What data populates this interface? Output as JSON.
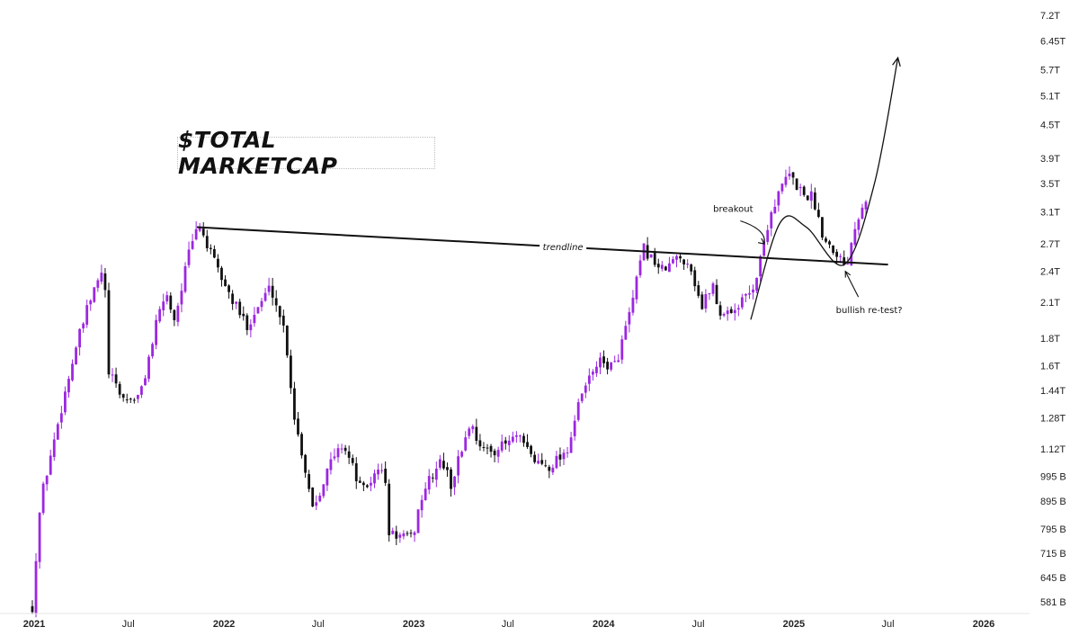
{
  "chart_data": {
    "type": "candlestick",
    "title": "$TOTAL MARKETCAP",
    "scale": "log",
    "bull_color": "#9c27e0",
    "bear_color": "#111111",
    "y_ticks": [
      "7.2T",
      "6.45T",
      "5.7T",
      "5.1T",
      "4.5T",
      "3.9T",
      "3.5T",
      "3.1T",
      "2.7T",
      "2.4T",
      "2.1T",
      "1.8T",
      "1.6T",
      "1.44T",
      "1.28T",
      "1.12T",
      "995 B",
      "895 B",
      "795 B",
      "715 B",
      "645 B",
      "581 B"
    ],
    "y_tick_values": [
      7.2,
      6.45,
      5.7,
      5.1,
      4.5,
      3.9,
      3.5,
      3.1,
      2.7,
      2.4,
      2.1,
      1.8,
      1.6,
      1.44,
      1.28,
      1.12,
      0.995,
      0.895,
      0.795,
      0.715,
      0.645,
      0.581
    ],
    "x_ticks": [
      {
        "label": "2021",
        "date": "2021-01-01",
        "year": true
      },
      {
        "label": "Jul",
        "date": "2021-07-01",
        "year": false
      },
      {
        "label": "2022",
        "date": "2022-01-01",
        "year": true
      },
      {
        "label": "Jul",
        "date": "2022-07-01",
        "year": false
      },
      {
        "label": "2023",
        "date": "2023-01-01",
        "year": true
      },
      {
        "label": "Jul",
        "date": "2023-07-01",
        "year": false
      },
      {
        "label": "2024",
        "date": "2024-01-01",
        "year": true
      },
      {
        "label": "Jul",
        "date": "2024-07-01",
        "year": false
      },
      {
        "label": "2025",
        "date": "2025-01-01",
        "year": true
      },
      {
        "label": "Jul",
        "date": "2025-07-01",
        "year": false
      },
      {
        "label": "2026",
        "date": "2026-01-01",
        "year": true
      }
    ],
    "price_path": [
      [
        "2020-12-25",
        0.57
      ],
      [
        "2021-01-10",
        0.9
      ],
      [
        "2021-02-20",
        1.35
      ],
      [
        "2021-03-20",
        1.75
      ],
      [
        "2021-04-14",
        2.1
      ],
      [
        "2021-05-12",
        2.45
      ],
      [
        "2021-05-20",
        1.55
      ],
      [
        "2021-06-20",
        1.38
      ],
      [
        "2021-07-20",
        1.4
      ],
      [
        "2021-08-20",
        1.9
      ],
      [
        "2021-09-07",
        2.2
      ],
      [
        "2021-09-25",
        1.95
      ],
      [
        "2021-10-20",
        2.55
      ],
      [
        "2021-11-10",
        2.95
      ],
      [
        "2021-12-05",
        2.55
      ],
      [
        "2022-01-10",
        2.15
      ],
      [
        "2022-02-10",
        1.9
      ],
      [
        "2022-03-28",
        2.25
      ],
      [
        "2022-04-25",
        1.85
      ],
      [
        "2022-05-12",
        1.3
      ],
      [
        "2022-06-18",
        0.87
      ],
      [
        "2022-07-20",
        1.05
      ],
      [
        "2022-08-15",
        1.15
      ],
      [
        "2022-09-20",
        0.93
      ],
      [
        "2022-11-01",
        1.05
      ],
      [
        "2022-11-10",
        0.78
      ],
      [
        "2022-12-25",
        0.76
      ],
      [
        "2023-01-15",
        0.93
      ],
      [
        "2023-02-20",
        1.07
      ],
      [
        "2023-03-10",
        0.96
      ],
      [
        "2023-04-15",
        1.25
      ],
      [
        "2023-05-15",
        1.1
      ],
      [
        "2023-06-15",
        1.13
      ],
      [
        "2023-07-15",
        1.18
      ],
      [
        "2023-08-20",
        1.06
      ],
      [
        "2023-09-15",
        1.04
      ],
      [
        "2023-10-20",
        1.12
      ],
      [
        "2023-11-15",
        1.4
      ],
      [
        "2023-12-15",
        1.62
      ],
      [
        "2024-01-20",
        1.6
      ],
      [
        "2024-02-20",
        2.05
      ],
      [
        "2024-03-14",
        2.65
      ],
      [
        "2024-04-20",
        2.4
      ],
      [
        "2024-05-20",
        2.55
      ],
      [
        "2024-06-10",
        2.5
      ],
      [
        "2024-07-05",
        2.05
      ],
      [
        "2024-07-25",
        2.3
      ],
      [
        "2024-08-05",
        2.0
      ],
      [
        "2024-09-10",
        2.05
      ],
      [
        "2024-10-15",
        2.28
      ],
      [
        "2024-11-12",
        3.05
      ],
      [
        "2024-12-17",
        3.65
      ],
      [
        "2025-01-15",
        3.35
      ],
      [
        "2025-02-03",
        3.3
      ],
      [
        "2025-02-25",
        2.75
      ],
      [
        "2025-03-15",
        2.65
      ],
      [
        "2025-04-08",
        2.45
      ],
      [
        "2025-04-22",
        2.85
      ],
      [
        "2025-05-10",
        3.25
      ],
      [
        "2025-05-20",
        3.3
      ]
    ],
    "annotations": {
      "trendline_label": "trendline",
      "breakout_label": "breakout",
      "retest_label": "bullish re-test?"
    },
    "trendline": {
      "start": [
        "2021-11-10",
        2.9
      ],
      "end": [
        "2025-07-01",
        2.47
      ]
    },
    "breakout_arrow": {
      "from": [
        "2024-09-20",
        2.98
      ],
      "to": [
        "2024-11-05",
        2.7
      ]
    },
    "retest_arrow": {
      "from": [
        "2025-05-05",
        2.15
      ],
      "to": [
        "2025-04-10",
        2.4
      ]
    },
    "projection_curve": [
      [
        "2024-10-10",
        1.95
      ],
      [
        "2024-12-05",
        2.95
      ],
      [
        "2025-01-25",
        2.9
      ],
      [
        "2025-04-08",
        2.47
      ],
      [
        "2025-06-05",
        3.5
      ],
      [
        "2025-07-20",
        6.0
      ]
    ]
  }
}
